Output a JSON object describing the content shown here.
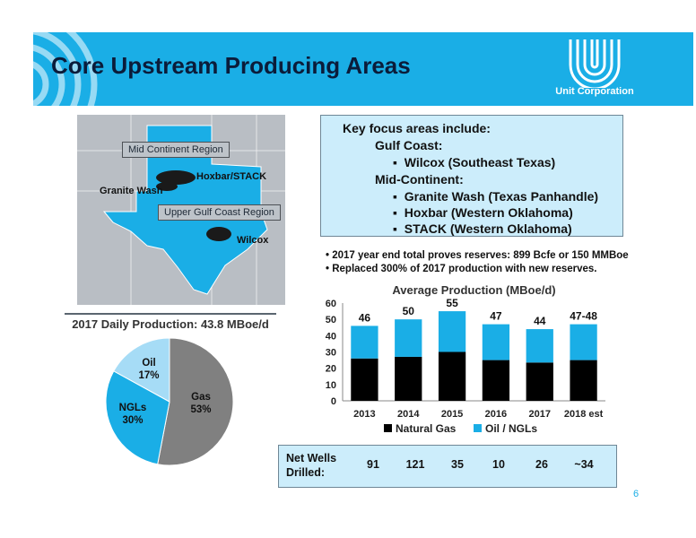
{
  "header": {
    "title": "Core Upstream Producing Areas",
    "logo_text": "Unit Corporation",
    "banner_color": "#1aaee6"
  },
  "map": {
    "labels": {
      "mid_continent": "Mid Continent Region",
      "hoxbar_stack": "Hoxbar/STACK",
      "granite_wash": "Granite Wash",
      "upper_gulf": "Upper Gulf Coast Region",
      "wilcox": "Wilcox"
    }
  },
  "key_focus": {
    "heading": "Key focus areas include:",
    "gulf_coast": "Gulf Coast:",
    "gulf_items": [
      "Wilcox (Southeast Texas)"
    ],
    "mid_continent": "Mid-Continent:",
    "mid_items": [
      "Granite Wash (Texas Panhandle)",
      "Hoxbar (Western Oklahoma)",
      "STACK (Western Oklahoma)"
    ]
  },
  "notes": [
    "2017 year end total proves reserves: 899 Bcfe or 150 MMBoe",
    "Replaced 300% of 2017 production with new reserves."
  ],
  "chart_data": [
    {
      "type": "pie",
      "title": "2017 Daily Production: 43.8 MBoe/d",
      "slices": [
        {
          "name": "Gas",
          "value": 53,
          "label": "53%",
          "color": "#808080"
        },
        {
          "name": "NGLs",
          "value": 30,
          "label": "30%",
          "color": "#1aaee6"
        },
        {
          "name": "Oil",
          "value": 17,
          "label": "17%",
          "color": "#a6dcf6"
        }
      ]
    },
    {
      "type": "bar",
      "stacked": true,
      "title": "Average Production (MBoe/d)",
      "categories": [
        "2013",
        "2014",
        "2015",
        "2016",
        "2017",
        "2018 est"
      ],
      "series": [
        {
          "name": "Natural Gas",
          "values": [
            26,
            27,
            30,
            25,
            23.5,
            25
          ],
          "color": "#000000"
        },
        {
          "name": "Oil / NGLs",
          "values": [
            20,
            23,
            25,
            22,
            20.5,
            22
          ],
          "color": "#1aaee6"
        }
      ],
      "total_labels": [
        "46",
        "50",
        "55",
        "47",
        "44",
        "47-48"
      ],
      "ylim": [
        0,
        60
      ],
      "yticks": [
        0,
        10,
        20,
        30,
        40,
        50,
        60
      ],
      "grid": false,
      "legend": "bottom"
    }
  ],
  "wells": {
    "label": "Net Wells Drilled:",
    "values": [
      "91",
      "121",
      "35",
      "10",
      "26",
      "~34"
    ]
  },
  "page_number": "6"
}
